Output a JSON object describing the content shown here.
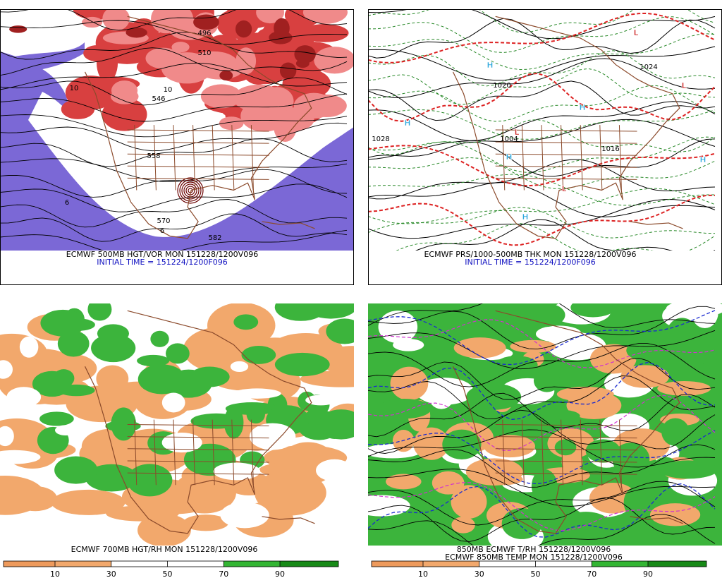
{
  "panels": [
    {
      "title": "ECMWF 500MB HGT/VOR MON 151228/1200V096",
      "subtitle": "INITIAL TIME = 151224/1200F096",
      "contour_labels": [
        "496",
        "510",
        "546",
        "558",
        "570",
        "582",
        "10",
        "10",
        "6",
        "6"
      ]
    },
    {
      "title": "ECMWF PRS/1000-500MB THK MON 151228/1200V096",
      "subtitle": "INITIAL TIME = 151224/1200F096",
      "contour_labels": [
        "1028",
        "1020",
        "1004",
        "1024",
        "1016"
      ],
      "markers": [
        {
          "label": "H",
          "color": "#2aa6dc"
        },
        {
          "label": "H",
          "color": "#2aa6dc"
        },
        {
          "label": "H",
          "color": "#2aa6dc"
        },
        {
          "label": "H",
          "color": "#2aa6dc"
        },
        {
          "label": "H",
          "color": "#2aa6dc"
        },
        {
          "label": "H",
          "color": "#2aa6dc"
        },
        {
          "label": "L",
          "color": "#cc2020"
        },
        {
          "label": "L",
          "color": "#cc2020"
        },
        {
          "label": "L",
          "color": "#cc2020"
        },
        {
          "label": "L",
          "color": "#cc2020"
        }
      ]
    },
    {
      "title": "ECMWF 700MB HGT/RH MON 151228/1200V096",
      "colorbar": {
        "ticks": [
          10,
          30,
          50,
          70,
          90
        ],
        "colors": [
          "#ee9a5c",
          "#f2a86c",
          "#ffffff",
          "#ffffff",
          "#33b533",
          "#178a17"
        ]
      }
    },
    {
      "title": "850MB ECMWF T/RH 151228/1200V096",
      "subtitle": "ECMWF 850MB TEMP MON 151228/1200V096",
      "colorbar": {
        "ticks": [
          10,
          30,
          50,
          70,
          90
        ],
        "colors": [
          "#ee9a5c",
          "#f2a86c",
          "#ffffff",
          "#ffffff",
          "#33b533",
          "#178a17"
        ]
      }
    }
  ]
}
